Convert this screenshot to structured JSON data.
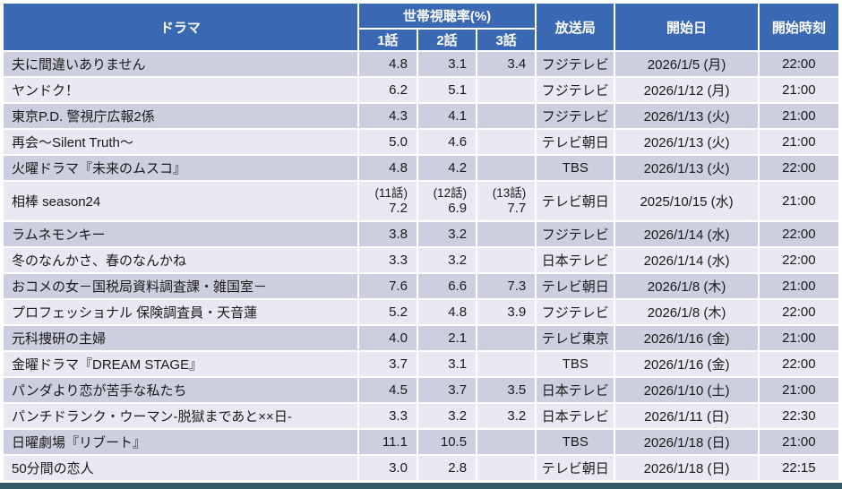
{
  "colors": {
    "header_bg": "#3A68B2",
    "header_text": "#FFFFFF",
    "row_dark": "#CDCFE0",
    "row_light": "#E8E9F2",
    "grid_line": "#FFFFFF",
    "outer_border": "#E2E6EF",
    "body_text": "#1A1A1A",
    "bottom_bar": "#335A64"
  },
  "table": {
    "header": {
      "drama": "ドラマ",
      "ratings_group": "世帯視聴率(%)",
      "ep1": "1話",
      "ep2": "2話",
      "ep3": "3話",
      "station": "放送局",
      "date": "開始日",
      "time": "開始時刻"
    },
    "rows": [
      {
        "drama": "夫に間違いありません",
        "ep1": "4.8",
        "ep2": "3.1",
        "ep3": "3.4",
        "station": "フジテレビ",
        "date": "2026/1/5 (月)",
        "time": "22:00"
      },
      {
        "drama": "ヤンドク！",
        "ep1": "6.2",
        "ep2": "5.1",
        "ep3": "",
        "station": "フジテレビ",
        "date": "2026/1/12 (月)",
        "time": "21:00"
      },
      {
        "drama": "東京P.D. 警視庁広報2係",
        "ep1": "4.3",
        "ep2": "4.1",
        "ep3": "",
        "station": "フジテレビ",
        "date": "2026/1/13 (火)",
        "time": "21:00"
      },
      {
        "drama": "再会～Silent Truth～",
        "ep1": "5.0",
        "ep2": "4.6",
        "ep3": "",
        "station": "テレビ朝日",
        "date": "2026/1/13 (火)",
        "time": "21:00"
      },
      {
        "drama": "火曜ドラマ『未来のムスコ』",
        "ep1": "4.8",
        "ep2": "4.2",
        "ep3": "",
        "station": "TBS",
        "date": "2026/1/13 (火)",
        "time": "22:00"
      },
      {
        "drama": "相棒 season24",
        "ep1_note": "(11話)",
        "ep1": "7.2",
        "ep2_note": "(12話)",
        "ep2": "6.9",
        "ep3_note": "(13話)",
        "ep3": "7.7",
        "station": "テレビ朝日",
        "date": "2025/10/15 (水)",
        "time": "21:00"
      },
      {
        "drama": "ラムネモンキー",
        "ep1": "3.8",
        "ep2": "3.2",
        "ep3": "",
        "station": "フジテレビ",
        "date": "2026/1/14 (水)",
        "time": "22:00"
      },
      {
        "drama": "冬のなんかさ、春のなんかね",
        "ep1": "3.3",
        "ep2": "3.2",
        "ep3": "",
        "station": "日本テレビ",
        "date": "2026/1/14 (水)",
        "time": "22:00"
      },
      {
        "drama": "おコメの女－国税局資料調査課・雑国室－",
        "ep1": "7.6",
        "ep2": "6.6",
        "ep3": "7.3",
        "station": "テレビ朝日",
        "date": "2026/1/8 (木)",
        "time": "21:00"
      },
      {
        "drama": "プロフェッショナル 保険調査員・天音蓮",
        "ep1": "5.2",
        "ep2": "4.8",
        "ep3": "3.9",
        "station": "フジテレビ",
        "date": "2026/1/8 (木)",
        "time": "22:00"
      },
      {
        "drama": "元科捜研の主婦",
        "ep1": "4.0",
        "ep2": "2.1",
        "ep3": "",
        "station": "テレビ東京",
        "date": "2026/1/16 (金)",
        "time": "21:00"
      },
      {
        "drama": "金曜ドラマ『DREAM STAGE』",
        "ep1": "3.7",
        "ep2": "3.1",
        "ep3": "",
        "station": "TBS",
        "date": "2026/1/16 (金)",
        "time": "22:00"
      },
      {
        "drama": "パンダより恋が苦手な私たち",
        "ep1": "4.5",
        "ep2": "3.7",
        "ep3": "3.5",
        "station": "日本テレビ",
        "date": "2026/1/10 (土)",
        "time": "21:00"
      },
      {
        "drama": "パンチドランク・ウーマン-脱獄まであと××日-",
        "ep1": "3.3",
        "ep2": "3.2",
        "ep3": "3.2",
        "station": "日本テレビ",
        "date": "2026/1/11 (日)",
        "time": "22:30"
      },
      {
        "drama": "日曜劇場『リブート』",
        "ep1": "11.1",
        "ep2": "10.5",
        "ep3": "",
        "station": "TBS",
        "date": "2026/1/18 (日)",
        "time": "21:00"
      },
      {
        "drama": "50分間の恋人",
        "ep1": "3.0",
        "ep2": "2.8",
        "ep3": "",
        "station": "テレビ朝日",
        "date": "2026/1/18 (日)",
        "time": "22:15"
      }
    ]
  },
  "chart_data": {
    "type": "table",
    "title": "ドラマ世帯視聴率一覧",
    "columns": [
      "ドラマ",
      "世帯視聴率(%) 1話",
      "世帯視聴率(%) 2話",
      "世帯視聴率(%) 3話",
      "放送局",
      "開始日",
      "開始時刻"
    ],
    "rows": [
      [
        "夫に間違いありません",
        4.8,
        3.1,
        3.4,
        "フジテレビ",
        "2026/1/5 (月)",
        "22:00"
      ],
      [
        "ヤンドク！",
        6.2,
        5.1,
        null,
        "フジテレビ",
        "2026/1/12 (月)",
        "21:00"
      ],
      [
        "東京P.D. 警視庁広報2係",
        4.3,
        4.1,
        null,
        "フジテレビ",
        "2026/1/13 (火)",
        "21:00"
      ],
      [
        "再会～Silent Truth～",
        5.0,
        4.6,
        null,
        "テレビ朝日",
        "2026/1/13 (火)",
        "21:00"
      ],
      [
        "火曜ドラマ『未来のムスコ』",
        4.8,
        4.2,
        null,
        "TBS",
        "2026/1/13 (火)",
        "22:00"
      ],
      [
        "相棒 season24",
        "(11話) 7.2",
        "(12話) 6.9",
        "(13話) 7.7",
        "テレビ朝日",
        "2025/10/15 (水)",
        "21:00"
      ],
      [
        "ラムネモンキー",
        3.8,
        3.2,
        null,
        "フジテレビ",
        "2026/1/14 (水)",
        "22:00"
      ],
      [
        "冬のなんかさ、春のなんかね",
        3.3,
        3.2,
        null,
        "日本テレビ",
        "2026/1/14 (水)",
        "22:00"
      ],
      [
        "おコメの女－国税局資料調査課・雑国室－",
        7.6,
        6.6,
        7.3,
        "テレビ朝日",
        "2026/1/8 (木)",
        "21:00"
      ],
      [
        "プロフェッショナル 保険調査員・天音蓮",
        5.2,
        4.8,
        3.9,
        "フジテレビ",
        "2026/1/8 (木)",
        "22:00"
      ],
      [
        "元科捜研の主婦",
        4.0,
        2.1,
        null,
        "テレビ東京",
        "2026/1/16 (金)",
        "21:00"
      ],
      [
        "金曜ドラマ『DREAM STAGE』",
        3.7,
        3.1,
        null,
        "TBS",
        "2026/1/16 (金)",
        "22:00"
      ],
      [
        "パンダより恋が苦手な私たち",
        4.5,
        3.7,
        3.5,
        "日本テレビ",
        "2026/1/10 (土)",
        "21:00"
      ],
      [
        "パンチドランク・ウーマン-脱獄まであと××日-",
        3.3,
        3.2,
        3.2,
        "日本テレビ",
        "2026/1/11 (日)",
        "22:30"
      ],
      [
        "日曜劇場『リブート』",
        11.1,
        10.5,
        null,
        "TBS",
        "2026/1/18 (日)",
        "21:00"
      ],
      [
        "50分間の恋人",
        3.0,
        2.8,
        null,
        "テレビ朝日",
        "2026/1/18 (日)",
        "22:15"
      ]
    ]
  }
}
